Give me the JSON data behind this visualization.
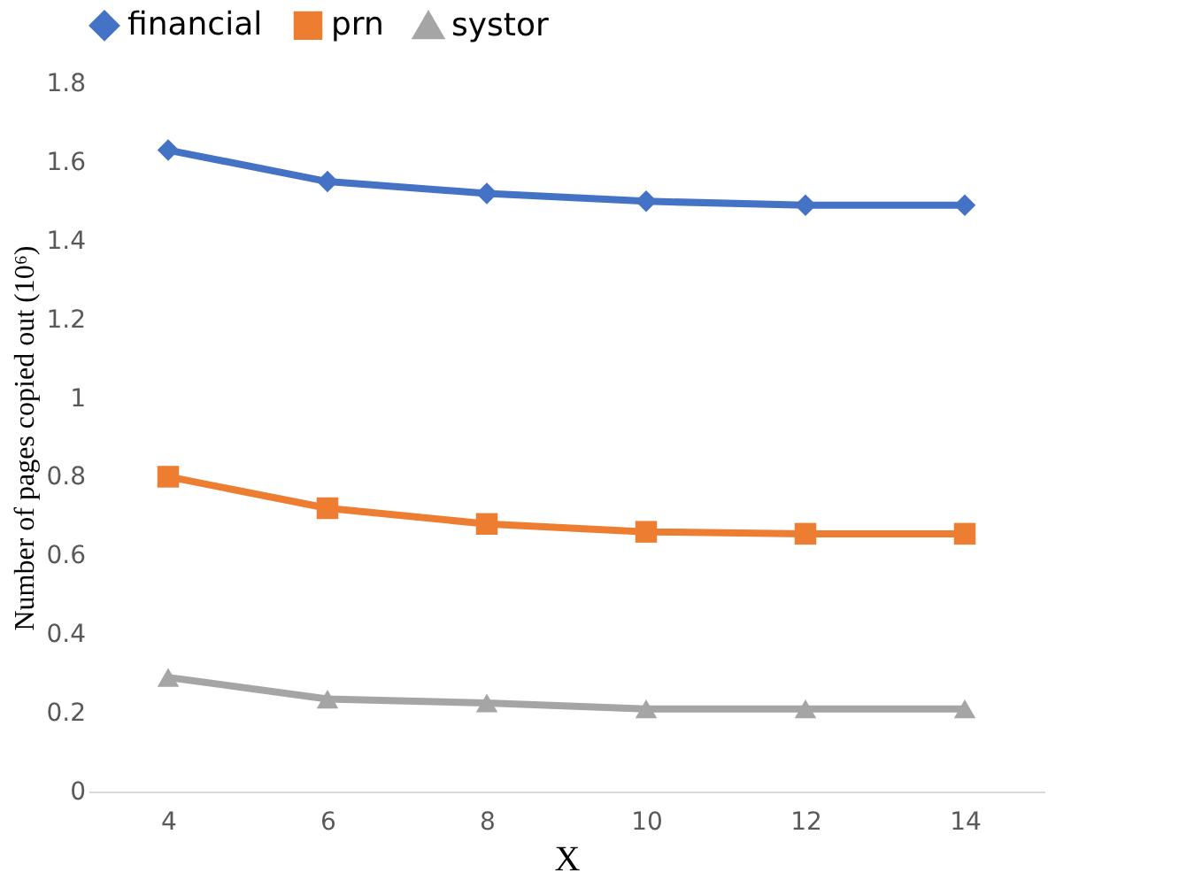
{
  "chart_data": {
    "type": "line",
    "xlabel": "X",
    "ylabel": "Number of pages copied out (10⁶)",
    "categories": [
      "4",
      "6",
      "8",
      "10",
      "12",
      "14"
    ],
    "series": [
      {
        "name": "financial",
        "color": "#4472c4",
        "marker": "diamond",
        "values": [
          1.63,
          1.55,
          1.52,
          1.5,
          1.49,
          1.49
        ]
      },
      {
        "name": "prn",
        "color": "#ed7d31",
        "marker": "square",
        "values": [
          0.8,
          0.72,
          0.68,
          0.66,
          0.655,
          0.655
        ]
      },
      {
        "name": "systor",
        "color": "#a5a5a5",
        "marker": "triangle",
        "values": [
          0.29,
          0.235,
          0.225,
          0.21,
          0.21,
          0.21
        ]
      }
    ],
    "ylim": [
      0,
      1.8
    ],
    "yticks": [
      0,
      0.2,
      0.4,
      0.6,
      0.8,
      1,
      1.2,
      1.4,
      1.6,
      1.8
    ],
    "grid": false,
    "legend": "top"
  }
}
